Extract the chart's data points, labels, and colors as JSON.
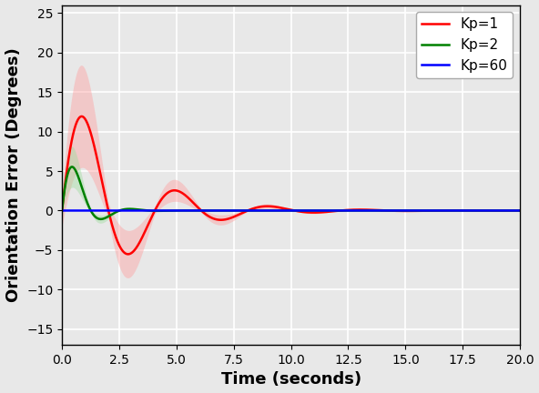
{
  "title": "",
  "xlabel": "Time (seconds)",
  "ylabel": "Orientation Error (Degrees)",
  "xlim": [
    0,
    20
  ],
  "ylim": [
    -17,
    26
  ],
  "xticks": [
    0.0,
    2.5,
    5.0,
    7.5,
    10.0,
    12.5,
    15.0,
    17.5,
    20.0
  ],
  "yticks": [
    -15,
    -10,
    -5,
    0,
    5,
    10,
    15,
    20,
    25
  ],
  "legend": [
    {
      "label": "Kp=1",
      "color": "#ff0000"
    },
    {
      "label": "Kp=2",
      "color": "#008000"
    },
    {
      "label": "Kp=60",
      "color": "#0000ff"
    }
  ],
  "kp1": {
    "color": "#ff0000",
    "fill_color": "#ff9999",
    "fill_alpha": 0.4,
    "damping": 0.38,
    "omega": 1.55,
    "amplitude": 17.0,
    "spread_factor": 0.42
  },
  "kp2": {
    "color": "#008000",
    "fill_color": "#99dd99",
    "fill_alpha": 0.4,
    "damping": 1.3,
    "omega": 2.5,
    "amplitude": 11.0,
    "spread_factor": 0.38
  },
  "kp60": {
    "color": "#0000ff"
  },
  "background_color": "#e8e8e8",
  "grid_color": "#ffffff",
  "linewidth": 1.8,
  "legend_fontsize": 11,
  "axis_fontsize": 13,
  "tick_fontsize": 10
}
